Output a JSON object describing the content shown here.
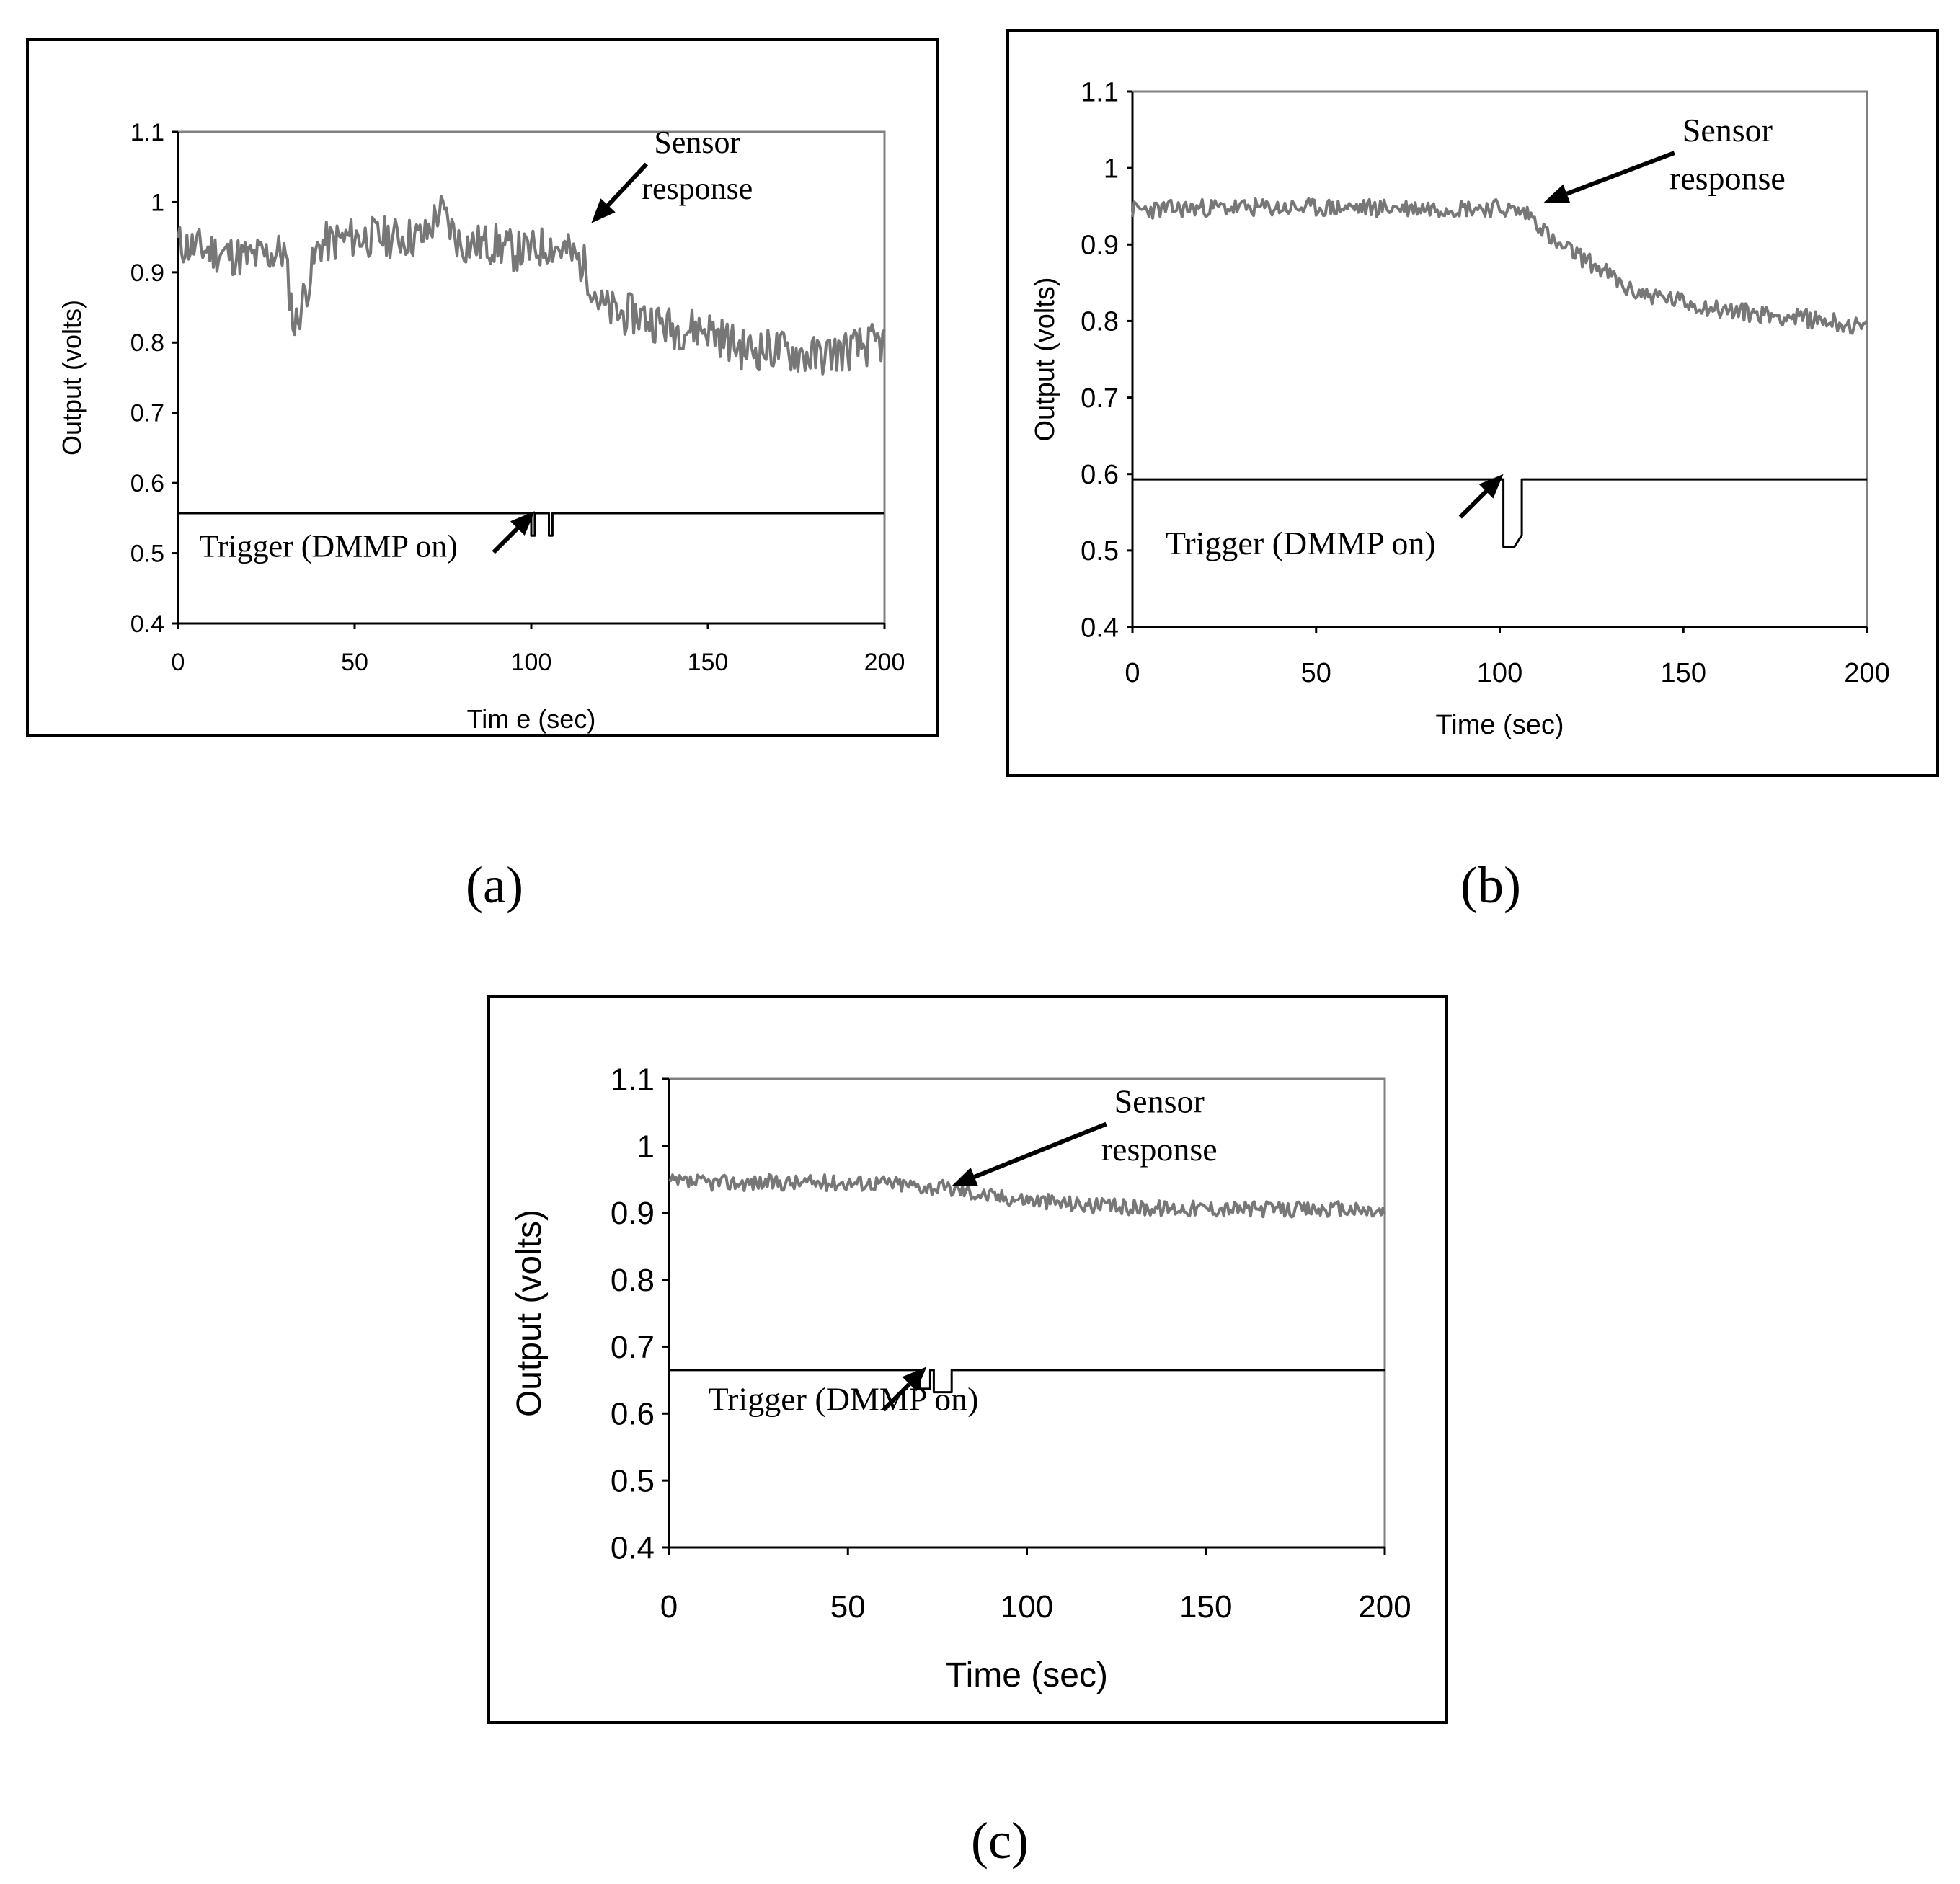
{
  "figure": {
    "panel_labels": [
      "(a)",
      "(b)",
      "(c)"
    ]
  },
  "chart_data": [
    {
      "type": "line",
      "panel": "(a)",
      "xlabel": "Tim e (sec)",
      "ylabel": "Output (volts)",
      "xlim": [
        0,
        200
      ],
      "ylim": [
        0.4,
        1.1
      ],
      "x_ticks": [
        0,
        50,
        100,
        150,
        200
      ],
      "y_ticks": [
        0.4,
        0.5,
        0.6,
        0.7,
        0.8,
        0.9,
        1,
        1.1
      ],
      "x_tick_labels": [
        "0",
        "50",
        "100",
        "150",
        "200"
      ],
      "y_tick_labels": [
        "0.4",
        "0.5",
        "0.6",
        "0.7",
        "0.8",
        "0.9",
        "1",
        "1.1"
      ],
      "series": [
        {
          "name": "Sensor response",
          "color": "#777777",
          "x": [
            0,
            10,
            20,
            30,
            33,
            40,
            50,
            60,
            70,
            74,
            80,
            90,
            95,
            100,
            105,
            110,
            115,
            120,
            125,
            130,
            140,
            150,
            160,
            170,
            180,
            190,
            200
          ],
          "y": [
            0.94,
            0.93,
            0.92,
            0.93,
            0.82,
            0.94,
            0.95,
            0.95,
            0.95,
            0.99,
            0.94,
            0.94,
            0.93,
            0.93,
            0.94,
            0.93,
            0.91,
            0.85,
            0.84,
            0.84,
            0.82,
            0.82,
            0.79,
            0.79,
            0.78,
            0.79,
            0.8
          ],
          "noise": 0.03
        },
        {
          "name": "Trigger (DMMP on)",
          "color": "#000000",
          "x": [
            0,
            100,
            100,
            101,
            101,
            105,
            105,
            106,
            106,
            200
          ],
          "y": [
            0.557,
            0.557,
            0.525,
            0.525,
            0.557,
            0.557,
            0.525,
            0.525,
            0.557,
            0.557
          ]
        }
      ],
      "annotations": [
        {
          "text": [
            "Sensor",
            "response"
          ],
          "text_at": [
            147,
            1.07
          ],
          "arrow_to": [
            117,
            0.97
          ]
        },
        {
          "text": [
            "Trigger (DMMP on)"
          ],
          "text_at": [
            6,
            0.495
          ],
          "arrow_to": [
            101,
            0.56
          ]
        }
      ]
    },
    {
      "type": "line",
      "panel": "(b)",
      "xlabel": "Time (sec)",
      "ylabel": "Output (volts)",
      "xlim": [
        0,
        200
      ],
      "ylim": [
        0.4,
        1.1
      ],
      "x_ticks": [
        0,
        50,
        100,
        150,
        200
      ],
      "y_ticks": [
        0.4,
        0.5,
        0.6,
        0.7,
        0.8,
        0.9,
        1,
        1.1
      ],
      "x_tick_labels": [
        "0",
        "50",
        "100",
        "150",
        "200"
      ],
      "y_tick_labels": [
        "0.4",
        "0.5",
        "0.6",
        "0.7",
        "0.8",
        "0.9",
        "1",
        "1.1"
      ],
      "series": [
        {
          "name": "Sensor response",
          "color": "#777777",
          "x": [
            0,
            20,
            40,
            60,
            80,
            100,
            108,
            112,
            115,
            120,
            125,
            130,
            135,
            140,
            150,
            160,
            170,
            180,
            190,
            200
          ],
          "y": [
            0.945,
            0.948,
            0.948,
            0.948,
            0.948,
            0.948,
            0.94,
            0.92,
            0.9,
            0.89,
            0.875,
            0.86,
            0.84,
            0.835,
            0.825,
            0.815,
            0.81,
            0.805,
            0.8,
            0.79
          ],
          "noise": 0.012
        },
        {
          "name": "Trigger (DMMP on)",
          "color": "#000000",
          "x": [
            0,
            101,
            101,
            104,
            106,
            106,
            200
          ],
          "y": [
            0.593,
            0.593,
            0.505,
            0.505,
            0.52,
            0.593,
            0.593
          ]
        }
      ],
      "annotations": [
        {
          "text": [
            "Sensor",
            "response"
          ],
          "text_at": [
            162,
            1.035
          ],
          "arrow_to": [
            112,
            0.955
          ]
        },
        {
          "text": [
            "Trigger (DMMP on)"
          ],
          "text_at": [
            9,
            0.495
          ],
          "arrow_to": [
            101,
            0.6
          ]
        }
      ]
    },
    {
      "type": "line",
      "panel": "(c)",
      "xlabel": "Time (sec)",
      "ylabel": "Output (volts)",
      "xlim": [
        0,
        200
      ],
      "ylim": [
        0.4,
        1.1
      ],
      "x_ticks": [
        0,
        50,
        100,
        150,
        200
      ],
      "y_ticks": [
        0.4,
        0.5,
        0.6,
        0.7,
        0.8,
        0.9,
        1,
        1.1
      ],
      "x_tick_labels": [
        "0",
        "50",
        "100",
        "150",
        "200"
      ],
      "y_tick_labels": [
        "0.4",
        "0.5",
        "0.6",
        "0.7",
        "0.8",
        "0.9",
        "1",
        "1.1"
      ],
      "series": [
        {
          "name": "Sensor response",
          "color": "#777777",
          "x": [
            0,
            20,
            40,
            60,
            70,
            80,
            90,
            100,
            110,
            120,
            130,
            140,
            150,
            160,
            170,
            180,
            190,
            200
          ],
          "y": [
            0.945,
            0.945,
            0.945,
            0.945,
            0.94,
            0.935,
            0.925,
            0.92,
            0.915,
            0.91,
            0.908,
            0.907,
            0.907,
            0.906,
            0.905,
            0.905,
            0.905,
            0.9
          ],
          "noise": 0.012
        },
        {
          "name": "Trigger (DMMP on)",
          "color": "#000000",
          "x": [
            0,
            70,
            70,
            73,
            73,
            74,
            74,
            79,
            79,
            200
          ],
          "y": [
            0.665,
            0.665,
            0.637,
            0.637,
            0.665,
            0.665,
            0.632,
            0.632,
            0.665,
            0.665
          ]
        }
      ],
      "annotations": [
        {
          "text": [
            "Sensor",
            "response"
          ],
          "text_at": [
            137,
            1.05
          ],
          "arrow_to": [
            79,
            0.94
          ]
        },
        {
          "text": [
            "Trigger (DMMP on)"
          ],
          "text_at": [
            11,
            0.605
          ],
          "arrow_to": [
            72,
            0.67
          ]
        }
      ]
    }
  ]
}
